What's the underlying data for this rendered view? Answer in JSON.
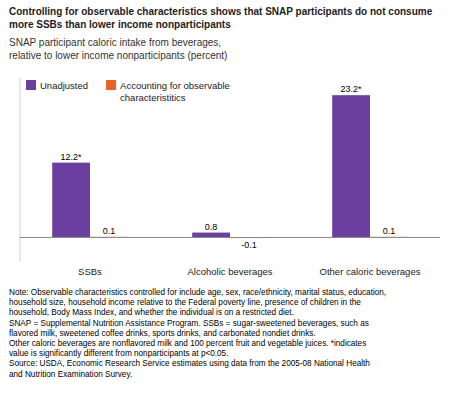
{
  "chart_data": {
    "type": "bar",
    "title": "Controlling for observable characteristics shows that SNAP participants do not consume\nmore SSBs than lower income nonparticipants",
    "subtitle": "SNAP participant caloric intake from beverages,\nrelative to lower income nonparticipants (percent)",
    "categories": [
      "SSBs",
      "Alcoholic beverages",
      "Other caloric beverages"
    ],
    "series": [
      {
        "name": "Unadjusted",
        "color": "#6B3FA0",
        "values": [
          12.2,
          0.8,
          23.2
        ],
        "value_labels": [
          "12.2*",
          "0.8",
          "23.2*"
        ]
      },
      {
        "name": "Accounting for observable\ncharacteristitics",
        "color": "#E8622A",
        "values": [
          0.1,
          -0.1,
          0.1
        ]
      }
    ],
    "ylim": [
      -4,
      26
    ],
    "data_labels": true,
    "tick_labels": "x",
    "grid": false,
    "legend": "upper left",
    "annotations": [
      "Note: Observable characteristics controlled for include age, sex, race/ethnicity, marital status, education,",
      "household size, household income relative to the Federal poverty line, presence of children in the",
      "household, Body Mass Index, and whether the individual is on a restricted diet.",
      "SNAP = Supplemental Nutrition Assistance Program. SSBs = sugar-sweetened beverages, such as",
      "flavored milk, sweetened coffee drinks, sports drinks, and carbonated nondiet drinks.",
      "Other caloric beverages are nonflavored milk and 100 percent fruit and vegetable juices. *indicates",
      "value is significantly different from nonparticipants at p<0.05.",
      "Source: USDA, Economic Research Service estimates using data from the 2005-08 National Health",
      "and Nutrition Examination Survey."
    ]
  }
}
